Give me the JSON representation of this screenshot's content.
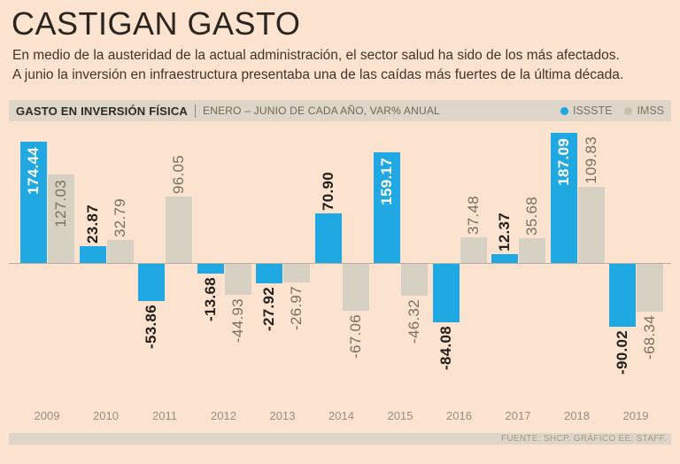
{
  "page": {
    "background": "#fbe3d0"
  },
  "header": {
    "title": "CASTIGAN GASTO",
    "subtitle_line1": "En medio de la austeridad de la actual administración, el sector salud ha sido de los más afectados.",
    "subtitle_line2": "A junio la inversión en infraestructura presentaba una de las caídas más fuertes de la última década."
  },
  "chart_header": {
    "label": "GASTO EN INVERSIÓN FÍSICA",
    "sublabel": "ENERO – JUNIO DE CADA AÑO, VAR% ANUAL",
    "legend": [
      {
        "name": "ISSSTE",
        "color": "#1fa8e1"
      },
      {
        "name": "IMSS",
        "color": "#c8c0b1"
      }
    ]
  },
  "chart_data": {
    "type": "bar",
    "title": "GASTO EN INVERSIÓN FÍSICA",
    "subtitle": "ENERO – JUNIO DE CADA AÑO, VAR% ANUAL",
    "categories": [
      "2009",
      "2010",
      "2011",
      "2012",
      "2013",
      "2014",
      "2015",
      "2016",
      "2017",
      "2018",
      "2019"
    ],
    "series": [
      {
        "name": "ISSSTE",
        "color": "#1fa8e1",
        "values": [
          174.44,
          23.87,
          -53.86,
          -13.68,
          -27.92,
          70.9,
          159.17,
          -84.08,
          12.37,
          187.09,
          -90.02
        ]
      },
      {
        "name": "IMSS",
        "color": "#d7d1c3",
        "values": [
          127.03,
          32.79,
          96.05,
          -44.93,
          -26.97,
          -67.06,
          -46.32,
          37.48,
          35.68,
          109.83,
          -68.34
        ]
      }
    ],
    "ylabel": "VAR% ANUAL",
    "ylim": [
      -100,
      200
    ],
    "grid": false,
    "legend_position": "top-right",
    "value_labels": "rotated-90-two-decimals"
  },
  "footer": {
    "source": "FUENTE: SHCP. GRÁFICO EE: STAFF."
  }
}
